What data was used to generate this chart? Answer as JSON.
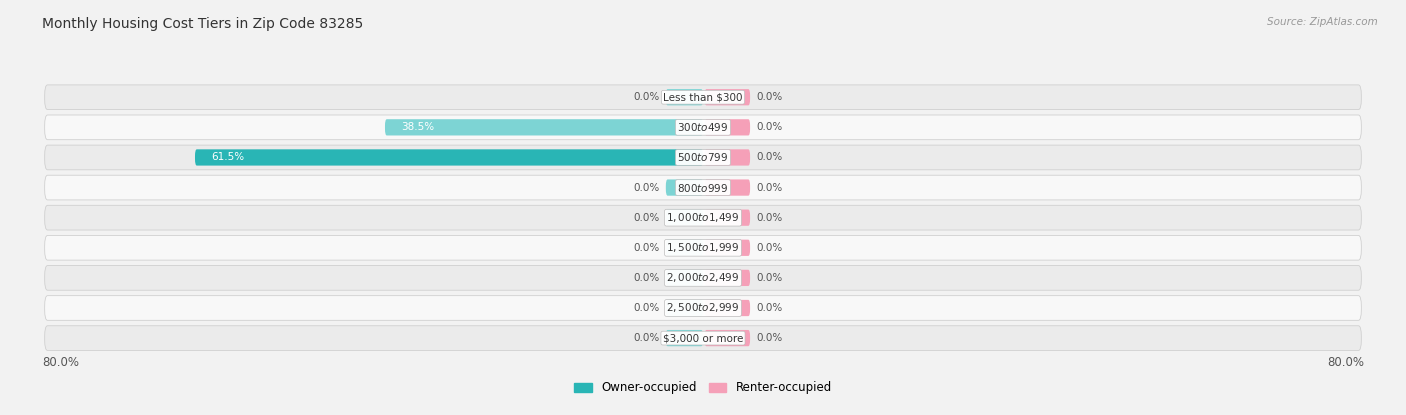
{
  "title": "Monthly Housing Cost Tiers in Zip Code 83285",
  "source": "Source: ZipAtlas.com",
  "categories": [
    "Less than $300",
    "$300 to $499",
    "$500 to $799",
    "$800 to $999",
    "$1,000 to $1,499",
    "$1,500 to $1,999",
    "$2,000 to $2,499",
    "$2,500 to $2,999",
    "$3,000 or more"
  ],
  "owner_values": [
    0.0,
    38.5,
    61.5,
    0.0,
    0.0,
    0.0,
    0.0,
    0.0,
    0.0
  ],
  "renter_values": [
    0.0,
    0.0,
    0.0,
    0.0,
    0.0,
    0.0,
    0.0,
    0.0,
    0.0
  ],
  "owner_color_dark": "#29B5B5",
  "owner_color_light": "#7DD4D4",
  "renter_color": "#F5A0B8",
  "zero_bar_width": 4.5,
  "renter_bar_width": 5.5,
  "xlim_left": -80,
  "xlim_right": 80,
  "axis_left_label": "80.0%",
  "axis_right_label": "80.0%",
  "bg_color": "#f2f2f2",
  "row_color_even": "#ebebeb",
  "row_color_odd": "#f8f8f8",
  "title_fontsize": 10,
  "bar_label_fontsize": 7.5,
  "cat_label_fontsize": 7.5,
  "legend_owner": "Owner-occupied",
  "legend_renter": "Renter-occupied"
}
